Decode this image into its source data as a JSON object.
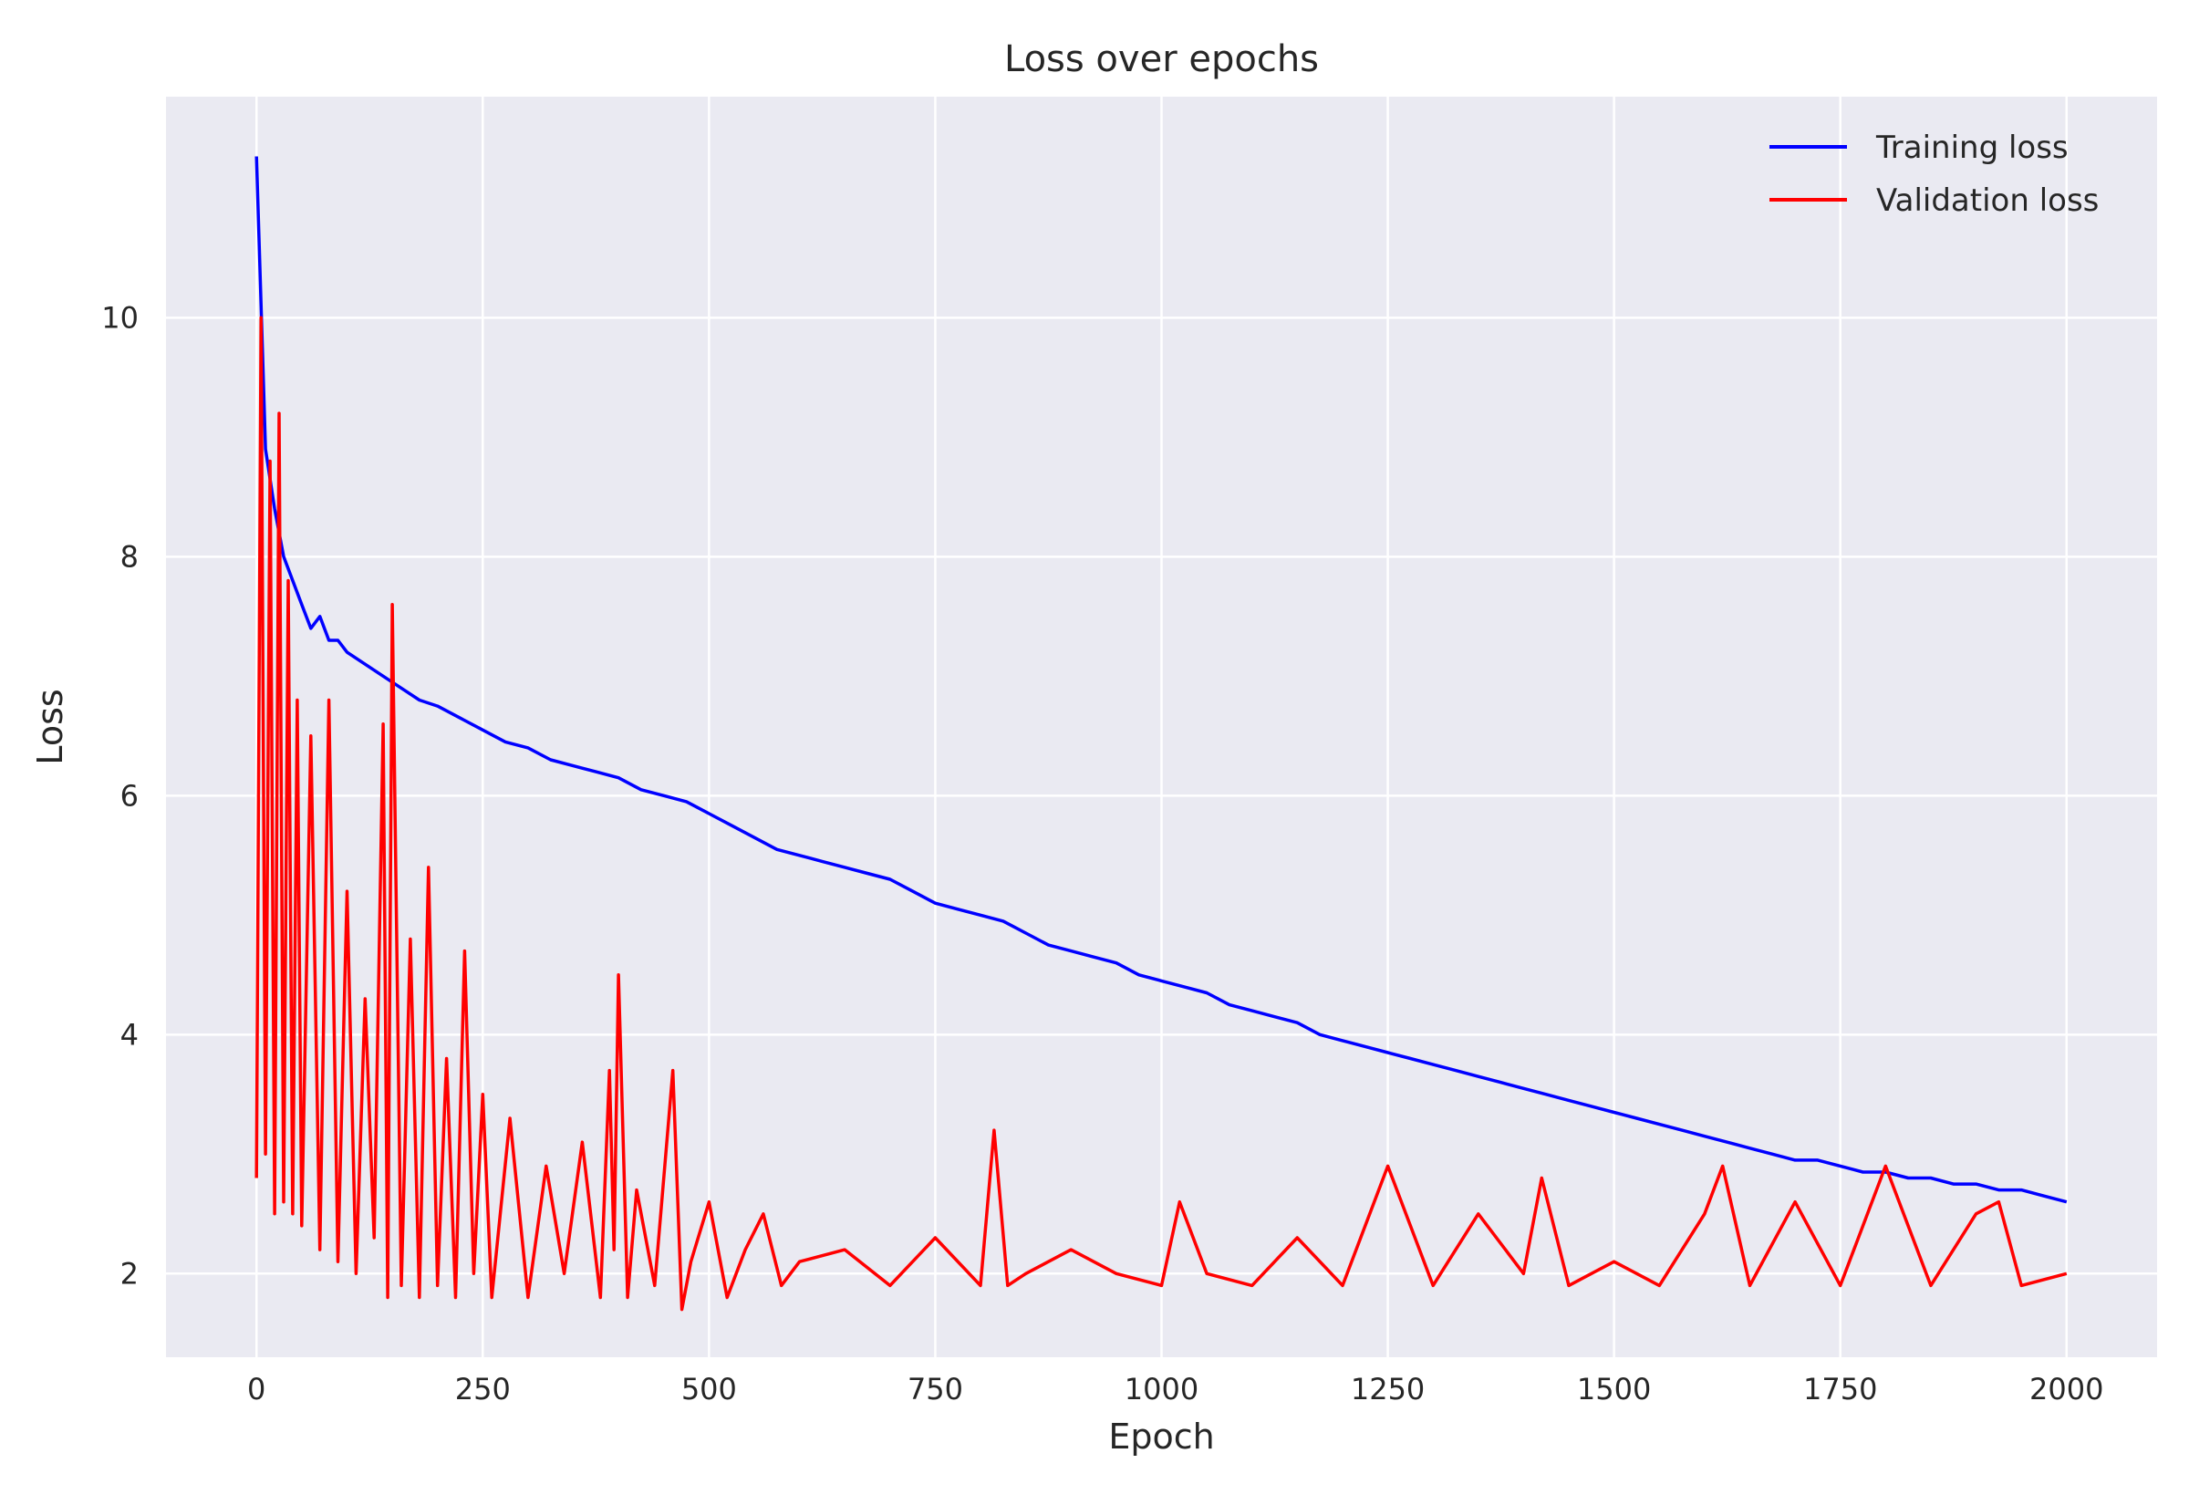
{
  "chart_data": {
    "type": "line",
    "title": "Loss over epochs",
    "xlabel": "Epoch",
    "ylabel": "Loss",
    "xlim": [
      -100,
      2100
    ],
    "ylim": [
      1.3,
      11.85
    ],
    "xticks": [
      0,
      250,
      500,
      750,
      1000,
      1250,
      1500,
      1750,
      2000
    ],
    "yticks": [
      2,
      4,
      6,
      8,
      10
    ],
    "grid": true,
    "legend_position": "top-right",
    "series": [
      {
        "name": "Training loss",
        "color": "#0000ff",
        "x": [
          0,
          10,
          20,
          30,
          40,
          50,
          60,
          70,
          80,
          90,
          100,
          120,
          140,
          160,
          180,
          200,
          225,
          250,
          275,
          300,
          325,
          350,
          375,
          400,
          425,
          450,
          475,
          500,
          525,
          550,
          575,
          600,
          625,
          650,
          675,
          700,
          725,
          750,
          775,
          800,
          825,
          850,
          875,
          900,
          925,
          950,
          975,
          1000,
          1025,
          1050,
          1075,
          1100,
          1125,
          1150,
          1175,
          1200,
          1225,
          1250,
          1275,
          1300,
          1325,
          1350,
          1375,
          1400,
          1425,
          1450,
          1475,
          1500,
          1525,
          1550,
          1575,
          1600,
          1625,
          1650,
          1675,
          1700,
          1725,
          1750,
          1775,
          1800,
          1825,
          1850,
          1875,
          1900,
          1925,
          1950,
          1975,
          2000
        ],
        "y": [
          11.35,
          8.9,
          8.4,
          8.0,
          7.8,
          7.6,
          7.4,
          7.5,
          7.3,
          7.3,
          7.2,
          7.1,
          7.0,
          6.9,
          6.8,
          6.75,
          6.65,
          6.55,
          6.45,
          6.4,
          6.3,
          6.25,
          6.2,
          6.15,
          6.05,
          6.0,
          5.95,
          5.85,
          5.75,
          5.65,
          5.55,
          5.5,
          5.45,
          5.4,
          5.35,
          5.3,
          5.2,
          5.1,
          5.05,
          5.0,
          4.95,
          4.85,
          4.75,
          4.7,
          4.65,
          4.6,
          4.5,
          4.45,
          4.4,
          4.35,
          4.25,
          4.2,
          4.15,
          4.1,
          4.0,
          3.95,
          3.9,
          3.85,
          3.8,
          3.75,
          3.7,
          3.65,
          3.6,
          3.55,
          3.5,
          3.45,
          3.4,
          3.35,
          3.3,
          3.25,
          3.2,
          3.15,
          3.1,
          3.05,
          3.0,
          2.95,
          2.95,
          2.9,
          2.85,
          2.85,
          2.8,
          2.8,
          2.75,
          2.75,
          2.7,
          2.7,
          2.65,
          2.6
        ]
      },
      {
        "name": "Validation loss",
        "color": "#ff0000",
        "x": [
          0,
          5,
          10,
          15,
          20,
          25,
          30,
          35,
          40,
          45,
          50,
          60,
          70,
          80,
          90,
          100,
          110,
          120,
          130,
          140,
          145,
          150,
          160,
          170,
          180,
          190,
          200,
          210,
          220,
          230,
          240,
          250,
          260,
          280,
          300,
          320,
          340,
          360,
          380,
          390,
          395,
          400,
          410,
          420,
          440,
          460,
          470,
          480,
          500,
          520,
          540,
          560,
          580,
          600,
          650,
          700,
          750,
          800,
          815,
          830,
          850,
          900,
          950,
          1000,
          1020,
          1050,
          1100,
          1150,
          1200,
          1250,
          1300,
          1350,
          1400,
          1420,
          1450,
          1500,
          1550,
          1600,
          1620,
          1650,
          1700,
          1750,
          1800,
          1850,
          1900,
          1925,
          1950,
          2000
        ],
        "y": [
          2.8,
          10.0,
          3.0,
          8.8,
          2.5,
          9.2,
          2.6,
          7.8,
          2.5,
          6.8,
          2.4,
          6.5,
          2.2,
          6.8,
          2.1,
          5.2,
          2.0,
          4.3,
          2.3,
          6.6,
          1.8,
          7.6,
          1.9,
          4.8,
          1.8,
          5.4,
          1.9,
          3.8,
          1.8,
          4.7,
          2.0,
          3.5,
          1.8,
          3.3,
          1.8,
          2.9,
          2.0,
          3.1,
          1.8,
          3.7,
          2.2,
          4.5,
          1.8,
          2.7,
          1.9,
          3.7,
          1.7,
          2.1,
          2.6,
          1.8,
          2.2,
          2.5,
          1.9,
          2.1,
          2.2,
          1.9,
          2.3,
          1.9,
          3.2,
          1.9,
          2.0,
          2.2,
          2.0,
          1.9,
          2.6,
          2.0,
          1.9,
          2.3,
          1.9,
          2.9,
          1.9,
          2.5,
          2.0,
          2.8,
          1.9,
          2.1,
          1.9,
          2.5,
          2.9,
          1.9,
          2.6,
          1.9,
          2.9,
          1.9,
          2.5,
          2.6,
          1.9,
          2.0
        ]
      }
    ]
  }
}
